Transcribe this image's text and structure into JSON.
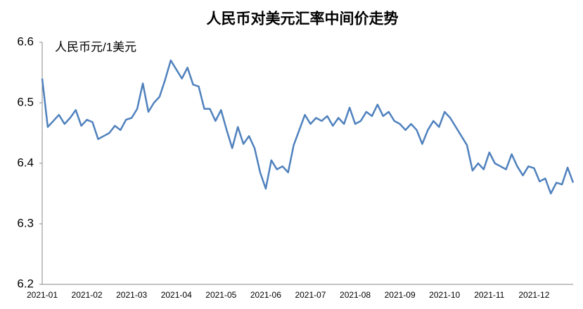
{
  "chart_data": {
    "type": "line",
    "title": "人民币对美元汇率中间价走势",
    "y_label": "人民币元/1美元",
    "categories": [
      "2021-01",
      null,
      null,
      null,
      null,
      null,
      null,
      null,
      "2021-02",
      null,
      null,
      null,
      null,
      null,
      null,
      null,
      "2021-03",
      null,
      null,
      null,
      null,
      null,
      null,
      null,
      "2021-04",
      null,
      null,
      null,
      null,
      null,
      null,
      null,
      "2021-05",
      null,
      null,
      null,
      null,
      null,
      null,
      null,
      "2021-06",
      null,
      null,
      null,
      null,
      null,
      null,
      null,
      "2021-07",
      null,
      null,
      null,
      null,
      null,
      null,
      null,
      "2021-08",
      null,
      null,
      null,
      null,
      null,
      null,
      null,
      "2021-09",
      null,
      null,
      null,
      null,
      null,
      null,
      null,
      "2021-10",
      null,
      null,
      null,
      null,
      null,
      null,
      null,
      "2021-11",
      null,
      null,
      null,
      null,
      null,
      null,
      null,
      "2021-12",
      null,
      null,
      null,
      null,
      null,
      null,
      null
    ],
    "series": [
      {
        "name": "人民币对美元汇率中间价",
        "color": "#4f81bd",
        "values": [
          6.54,
          6.46,
          6.47,
          6.48,
          6.465,
          6.475,
          6.488,
          6.462,
          6.472,
          6.468,
          6.44,
          6.445,
          6.45,
          6.462,
          6.455,
          6.472,
          6.475,
          6.49,
          6.532,
          6.485,
          6.5,
          6.51,
          6.538,
          6.57,
          6.555,
          6.54,
          6.558,
          6.53,
          6.527,
          6.49,
          6.49,
          6.47,
          6.488,
          6.455,
          6.425,
          6.46,
          6.432,
          6.445,
          6.425,
          6.385,
          6.358,
          6.405,
          6.39,
          6.395,
          6.385,
          6.43,
          6.455,
          6.48,
          6.465,
          6.475,
          6.47,
          6.478,
          6.462,
          6.475,
          6.465,
          6.492,
          6.465,
          6.47,
          6.485,
          6.478,
          6.497,
          6.478,
          6.485,
          6.47,
          6.465,
          6.455,
          6.465,
          6.455,
          6.432,
          6.455,
          6.47,
          6.46,
          6.485,
          6.475,
          6.46,
          6.445,
          6.43,
          6.388,
          6.4,
          6.39,
          6.418,
          6.4,
          6.395,
          6.39,
          6.415,
          6.395,
          6.38,
          6.395,
          6.392,
          6.37,
          6.375,
          6.35,
          6.368,
          6.365,
          6.393,
          6.368
        ]
      }
    ],
    "ylim": [
      6.2,
      6.6
    ],
    "yticks": [
      6.2,
      6.3,
      6.4,
      6.5,
      6.6
    ],
    "grid": false
  }
}
